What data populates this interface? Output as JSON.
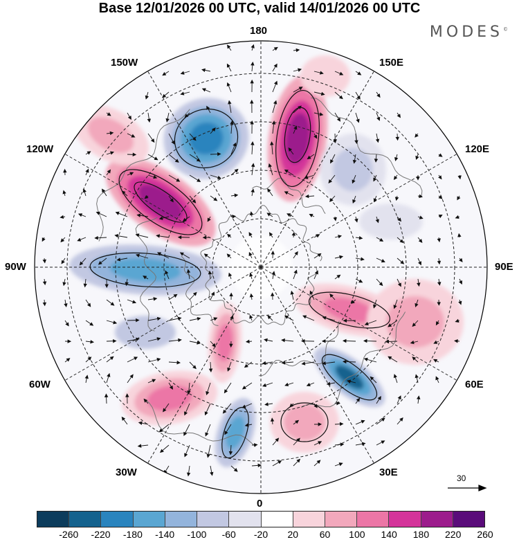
{
  "title": "Base 12/01/2026 00 UTC, valid 14/01/2026 00 UTC",
  "brand": "MODES",
  "brand_mark": "©",
  "map": {
    "projection": "north-polar-stereographic",
    "longitude_labels": {
      "top": "180",
      "bottom": "0",
      "left": "90W",
      "right": "90E",
      "nw1": "150W",
      "nw2": "120W",
      "ne1": "150E",
      "ne2": "120E",
      "sw1": "60W",
      "sw2": "30W",
      "se1": "60E",
      "se2": "30E"
    },
    "wind_reference": {
      "label": "30",
      "icon": "arrow-right-icon"
    }
  },
  "colorbar": {
    "colors": [
      "#0c3c5c",
      "#14628e",
      "#2a84be",
      "#5aa6d2",
      "#93b4dc",
      "#c2c8e2",
      "#e2e2ee",
      "#ffffff",
      "#f8d4dc",
      "#f2a8bc",
      "#ec76a6",
      "#d4349a",
      "#9c1c8c",
      "#5a0c7a"
    ],
    "ticks": [
      "-260",
      "-220",
      "-180",
      "-140",
      "-100",
      "-60",
      "-20",
      "20",
      "60",
      "100",
      "140",
      "180",
      "220",
      "260"
    ]
  }
}
